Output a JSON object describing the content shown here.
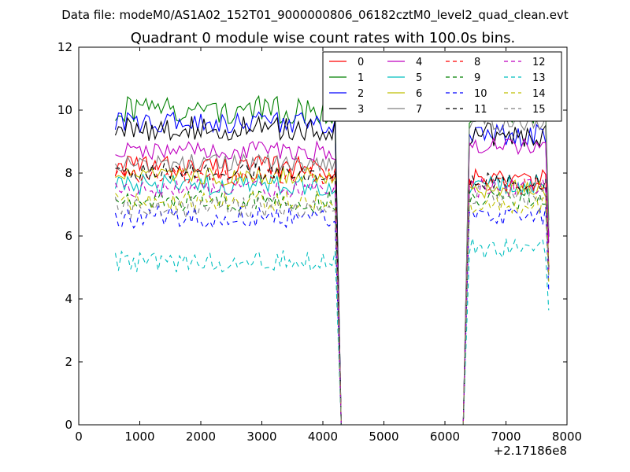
{
  "header": {
    "suptitle": "Data file: modeM0/AS1A02_152T01_9000000806_06182cztM0_level2_quad_clean.evt"
  },
  "chart_data": {
    "type": "line",
    "title": "Quadrant 0 module wise count rates with 100.0s bins.",
    "xlabel": "",
    "ylabel": "",
    "x_offset_label": "+2.17186e8",
    "xlim": [
      0,
      8000
    ],
    "ylim": [
      0,
      12
    ],
    "xticks": [
      "0",
      "1000",
      "2000",
      "3000",
      "4000",
      "5000",
      "6000",
      "7000",
      "8000"
    ],
    "yticks": [
      "0",
      "2",
      "4",
      "6",
      "8",
      "10",
      "12"
    ],
    "grid": false,
    "legend_position": "top-right",
    "gti_edges": [
      600,
      4200,
      4300,
      6300,
      6400,
      7700
    ],
    "series": [
      {
        "name": "0",
        "color": "#ff0000",
        "style": "solid",
        "level1": 8.2,
        "level2": 7.8,
        "amp": 0.35
      },
      {
        "name": "1",
        "color": "#008000",
        "style": "solid",
        "level1": 10.0,
        "level2": 10.0,
        "amp": 0.45
      },
      {
        "name": "2",
        "color": "#0000ff",
        "style": "solid",
        "level1": 9.6,
        "level2": 9.2,
        "amp": 0.35
      },
      {
        "name": "3",
        "color": "#000000",
        "style": "solid",
        "level1": 9.4,
        "level2": 9.2,
        "amp": 0.4
      },
      {
        "name": "4",
        "color": "#bf00bf",
        "style": "solid",
        "level1": 8.7,
        "level2": 8.9,
        "amp": 0.3
      },
      {
        "name": "5",
        "color": "#00bfbf",
        "style": "solid",
        "level1": 7.6,
        "level2": 7.6,
        "amp": 0.35
      },
      {
        "name": "6",
        "color": "#bfbf00",
        "style": "solid",
        "level1": 7.9,
        "level2": 7.5,
        "amp": 0.3
      },
      {
        "name": "7",
        "color": "#808080",
        "style": "solid",
        "level1": 8.3,
        "level2": 9.6,
        "amp": 0.3
      },
      {
        "name": "8",
        "color": "#ff0000",
        "style": "dashed",
        "level1": 7.9,
        "level2": 7.6,
        "amp": 0.3
      },
      {
        "name": "9",
        "color": "#008000",
        "style": "dashed",
        "level1": 7.1,
        "level2": 7.2,
        "amp": 0.35
      },
      {
        "name": "10",
        "color": "#0000ff",
        "style": "dashed",
        "level1": 6.6,
        "level2": 6.6,
        "amp": 0.35
      },
      {
        "name": "11",
        "color": "#000000",
        "style": "dashed",
        "level1": 8.0,
        "level2": 7.7,
        "amp": 0.3
      },
      {
        "name": "12",
        "color": "#bf00bf",
        "style": "dashed",
        "level1": 7.5,
        "level2": 7.5,
        "amp": 0.3
      },
      {
        "name": "13",
        "color": "#00bfbf",
        "style": "dashed",
        "level1": 5.2,
        "level2": 5.6,
        "amp": 0.35
      },
      {
        "name": "14",
        "color": "#bfbf00",
        "style": "dashed",
        "level1": 7.1,
        "level2": 7.0,
        "amp": 0.3
      },
      {
        "name": "15",
        "color": "#808080",
        "style": "dashed",
        "level1": 6.9,
        "level2": 7.3,
        "amp": 0.35
      }
    ]
  }
}
